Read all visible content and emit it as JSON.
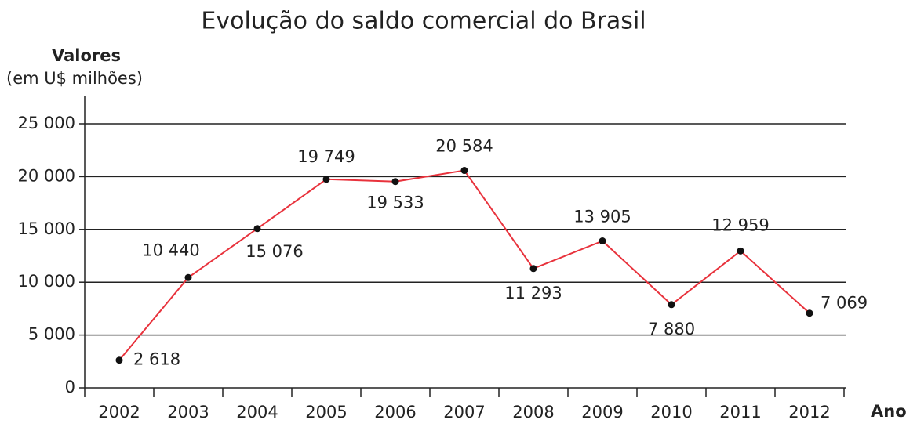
{
  "chart_data": {
    "type": "line",
    "title": "Evolução do saldo comercial do Brasil",
    "y_label": "Valores",
    "y_sublabel": "(em U$ milhões)",
    "x_label": "Ano",
    "categories": [
      "2002",
      "2003",
      "2004",
      "2005",
      "2006",
      "2007",
      "2008",
      "2009",
      "2010",
      "2011",
      "2012"
    ],
    "values": [
      2618,
      10440,
      15076,
      19749,
      19533,
      20584,
      11293,
      13905,
      7880,
      12959,
      7069
    ],
    "value_labels": [
      "2 618",
      "10 440",
      "15 076",
      "19 749",
      "19 533",
      "20 584",
      "11 293",
      "13 905",
      "7 880",
      "12 959",
      "7 069"
    ],
    "color": "#e8323c",
    "ylim": [
      0,
      25000
    ],
    "yticks": [
      0,
      {
        "value": 5000,
        "label": "5 000"
      },
      {
        "value": 10000,
        "label": "10 000"
      },
      {
        "value": 15000,
        "label": "15 000"
      },
      {
        "value": 20000,
        "label": "20 000"
      },
      {
        "value": 25000,
        "label": "25 000"
      }
    ],
    "grid": true
  }
}
